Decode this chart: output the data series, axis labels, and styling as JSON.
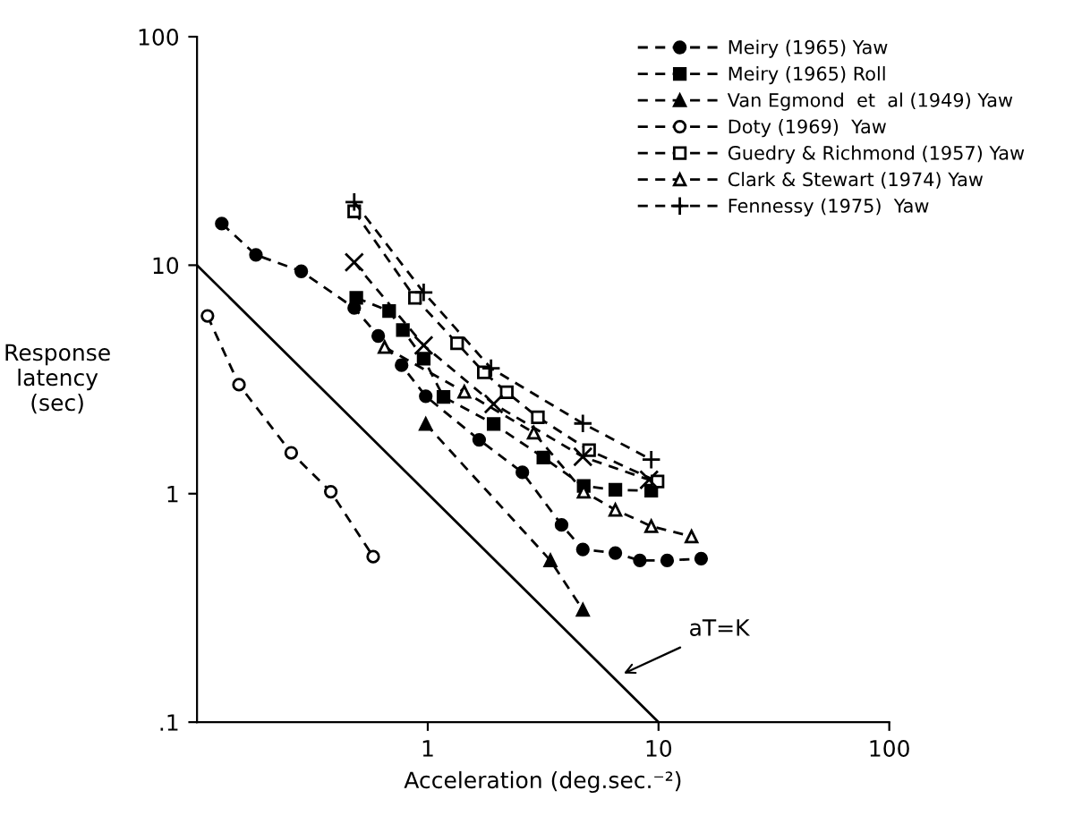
{
  "chart_data": {
    "type": "line",
    "xlabel": "Acceleration (deg.sec.⁻²)",
    "ylabel": "Response\nlatency\n(sec)",
    "log": "xy",
    "xlim": [
      0.1,
      100
    ],
    "ylim": [
      0.1,
      100
    ],
    "xticks": [
      {
        "value": 1,
        "label": "1"
      },
      {
        "value": 10,
        "label": "10"
      },
      {
        "value": 100,
        "label": "100"
      }
    ],
    "yticks": [
      {
        "value": 0.1,
        "label": ".1"
      },
      {
        "value": 1,
        "label": "1"
      },
      {
        "value": 10,
        "label": "10"
      },
      {
        "value": 100,
        "label": "100"
      }
    ],
    "grid": false,
    "legend": "top right",
    "line_style": "dashed",
    "annotations": [
      {
        "text": "aT=K",
        "x": 6.75,
        "y": 0.16
      }
    ],
    "series": [
      {
        "name": "Meiry (1965) Yaw",
        "color": "#000000",
        "marker": "circle",
        "x": [
          0.128,
          0.18,
          0.283,
          0.48,
          0.61,
          0.77,
          0.98,
          1.67,
          2.57,
          3.8,
          4.7,
          6.5,
          8.3,
          10.9,
          15.3
        ],
        "values": [
          15.2,
          11.1,
          9.4,
          6.5,
          4.9,
          3.65,
          2.67,
          1.72,
          1.24,
          0.73,
          0.57,
          0.55,
          0.51,
          0.51,
          0.52
        ]
      },
      {
        "name": "Meiry (1965) Roll",
        "color": "#000000",
        "marker": "square",
        "x": [
          0.49,
          0.68,
          0.78,
          0.96,
          1.17,
          1.93,
          3.17,
          4.74,
          6.5,
          9.3
        ],
        "values": [
          7.2,
          6.3,
          5.2,
          3.9,
          2.65,
          2.02,
          1.44,
          1.08,
          1.04,
          1.03
        ]
      },
      {
        "name": "Van Egmond  et  al (1949) Yaw",
        "color": "#000000",
        "marker": "triangle",
        "x": [
          0.98,
          3.4,
          4.7
        ],
        "values": [
          2.02,
          0.51,
          0.31
        ]
      },
      {
        "name": "Doty (1969)  Yaw",
        "color": "#000000",
        "marker": "circle-open",
        "x": [
          0.111,
          0.152,
          0.256,
          0.38,
          0.58
        ],
        "values": [
          6.0,
          3.0,
          1.51,
          1.02,
          0.53
        ]
      },
      {
        "name": "Guedry & Richmond (1957) Yaw",
        "color": "#000000",
        "marker": "square-open",
        "x": [
          0.48,
          0.88,
          1.34,
          1.75,
          2.2,
          3.0,
          5.0,
          9.9
        ],
        "values": [
          17.2,
          7.2,
          4.55,
          3.4,
          2.78,
          2.16,
          1.55,
          1.13
        ]
      },
      {
        "name": "Clark & Stewart (1974) Yaw",
        "color": "#000000",
        "marker": "triangle-open",
        "x": [
          0.65,
          1.44,
          2.88,
          4.74,
          6.5,
          9.3,
          13.9
        ],
        "values": [
          4.38,
          2.79,
          1.85,
          1.02,
          0.85,
          0.72,
          0.65
        ]
      },
      {
        "name": "Fennessy (1975)  Yaw",
        "color": "#000000",
        "marker": "plus",
        "x": [
          0.48,
          0.96,
          1.88,
          4.7,
          9.3
        ],
        "values": [
          18.9,
          7.6,
          3.54,
          2.03,
          1.41
        ]
      },
      {
        "color": "#000000",
        "marker": "cross",
        "x": [
          0.48,
          0.96,
          1.93,
          4.7,
          9.1
        ],
        "values": [
          10.3,
          4.46,
          2.47,
          1.45,
          1.15
        ]
      },
      {
        "color": "#000000",
        "marker": "none",
        "line_style": "solid",
        "x": [
          0.1,
          10
        ],
        "values": [
          10,
          0.1
        ]
      }
    ]
  }
}
